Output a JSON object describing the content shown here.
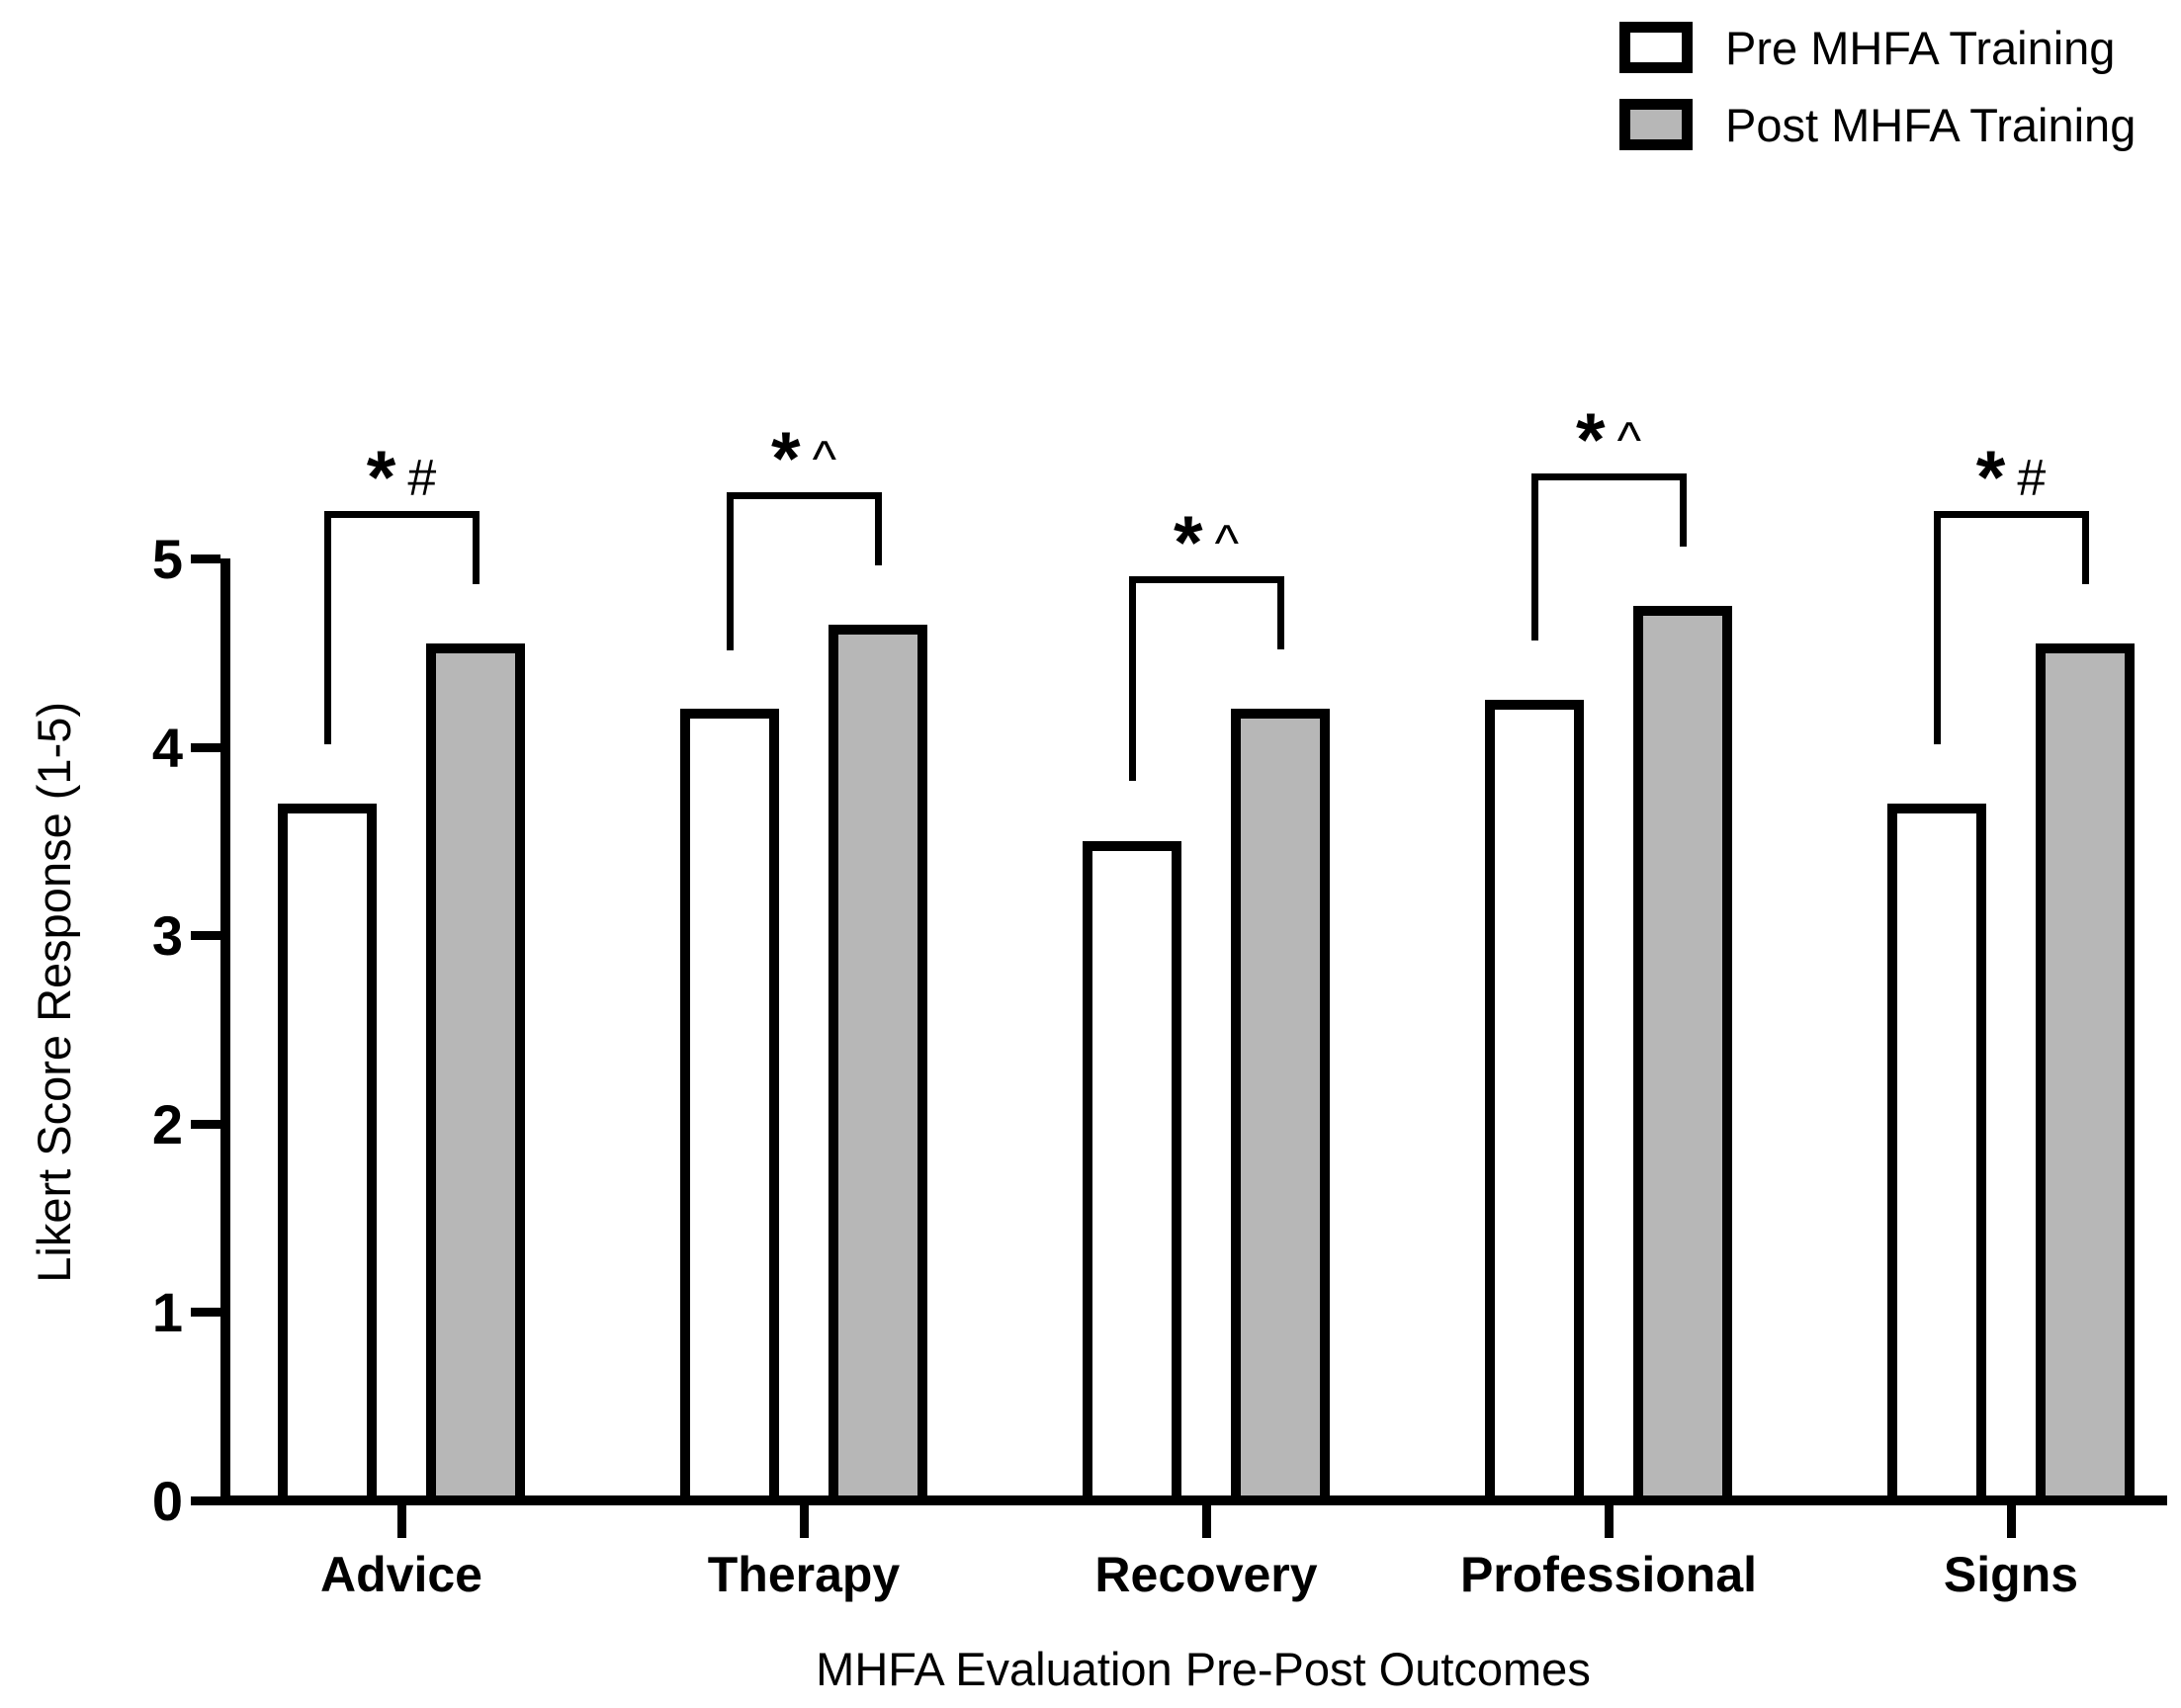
{
  "legend": [
    {
      "label": "Pre MHFA Training",
      "fill": "#ffffff"
    },
    {
      "label": "Post MHFA Training",
      "fill": "#b7b7b7"
    }
  ],
  "chart_data": {
    "type": "bar",
    "title": "",
    "xlabel": "MHFA Evaluation Pre-Post Outcomes",
    "ylabel": "Likert Score Response (1-5)",
    "ylim": [
      0,
      5
    ],
    "yticks": [
      0,
      1,
      2,
      3,
      4,
      5
    ],
    "grid": false,
    "legend_position": "top-right",
    "categories": [
      "Advice",
      "Therapy",
      "Recovery",
      "Professional",
      "Signs"
    ],
    "series": [
      {
        "name": "Pre MHFA Training",
        "fill": "#ffffff",
        "values": [
          3.7,
          4.2,
          3.5,
          4.25,
          3.7
        ]
      },
      {
        "name": "Post MHFA Training",
        "fill": "#b7b7b7",
        "values": [
          4.55,
          4.65,
          4.2,
          4.75,
          4.55
        ]
      }
    ],
    "significance_labels": [
      "*#",
      "*^",
      "*^",
      "*^",
      "*#"
    ],
    "colors": {
      "axis": "#000000",
      "bar_border": "#000000",
      "pre_fill": "#ffffff",
      "post_fill": "#b7b7b7"
    }
  }
}
